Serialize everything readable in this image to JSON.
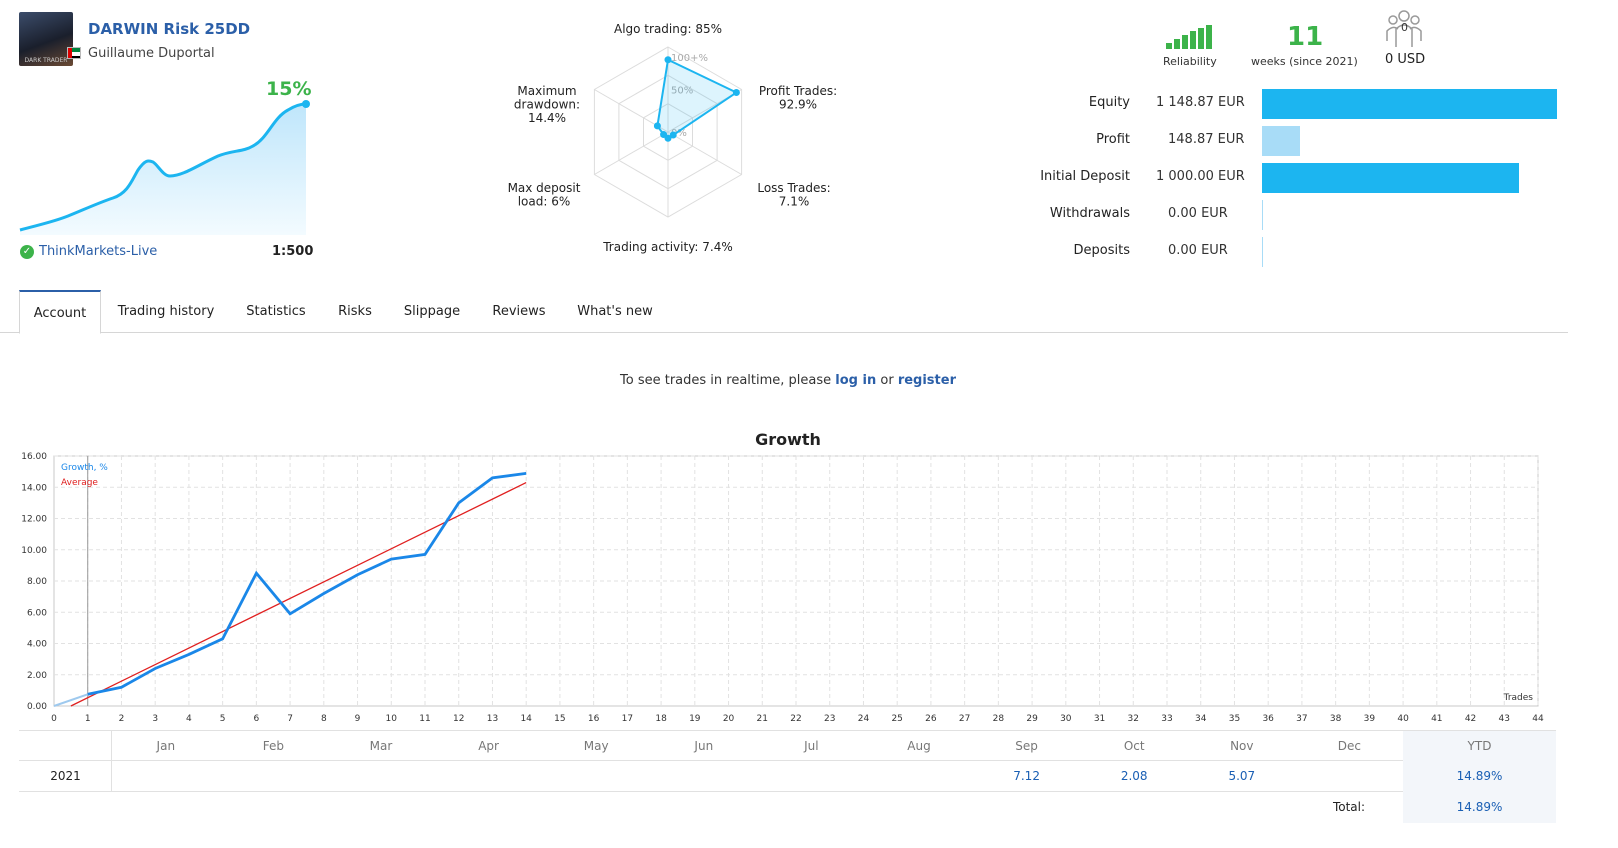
{
  "header": {
    "title": "DARWIN Risk 25DD",
    "author": "Guillaume Duportal",
    "avatar_text": "DARK TRADER",
    "growth_pct": "15%",
    "broker": "ThinkMarkets-Live",
    "leverage": "1:500"
  },
  "radar": {
    "axes": [
      {
        "label": "Algo trading: 85%",
        "value": 85
      },
      {
        "label_lines": [
          "Profit Trades:",
          "92.9%"
        ],
        "value": 92.9
      },
      {
        "label_lines": [
          "Loss Trades:",
          "7.1%"
        ],
        "value": 7.1
      },
      {
        "label": "Trading activity: 7.4%",
        "value": 7.4
      },
      {
        "label_lines": [
          "Max deposit",
          "load: 6%"
        ],
        "value": 6
      },
      {
        "label_lines": [
          "Maximum",
          "drawdown:",
          "14.4%"
        ],
        "value": 14.4
      }
    ],
    "ring_labels": [
      "100+%",
      "50%",
      "0%"
    ]
  },
  "stats": {
    "reliability_label": "Reliability",
    "weeks": "11",
    "weeks_label": "weeks (since 2021)",
    "investors_count": "0",
    "investors_usd": "0 USD"
  },
  "financials": [
    {
      "label": "Equity",
      "value": "1 148.87 EUR",
      "fraction": 1.0,
      "color": "#1cb5f0"
    },
    {
      "label": "Profit",
      "value": "148.87 EUR",
      "fraction": 0.1296,
      "color": "#a8dcf7"
    },
    {
      "label": "Initial Deposit",
      "value": "1 000.00 EUR",
      "fraction": 0.8704,
      "color": "#1cb5f0"
    },
    {
      "label": "Withdrawals",
      "value": "0.00 EUR",
      "fraction": 0,
      "color": "#a8dcf7"
    },
    {
      "label": "Deposits",
      "value": "0.00 EUR",
      "fraction": 0,
      "color": "#a8dcf7"
    }
  ],
  "tabs": [
    "Account",
    "Trading history",
    "Statistics",
    "Risks",
    "Slippage",
    "Reviews",
    "What's new"
  ],
  "realtime": {
    "prefix": "To see trades in realtime, please ",
    "login": "log in",
    "or": " or ",
    "register": "register"
  },
  "chart_data": {
    "type": "line",
    "title": "Growth",
    "xlabel": "Trades",
    "ylabel": "",
    "xlim": [
      0,
      44
    ],
    "ylim": [
      0,
      16
    ],
    "y_ticks": [
      "0.00",
      "2.00",
      "4.00",
      "6.00",
      "8.00",
      "10.00",
      "12.00",
      "14.00",
      "16.00"
    ],
    "legend": [
      "Growth, %",
      "Average"
    ],
    "series": [
      {
        "name": "Growth, %",
        "color": "#1a87e8",
        "x": [
          0,
          1,
          2,
          3,
          4,
          5,
          6,
          7,
          8,
          9,
          10,
          11,
          12,
          13,
          14
        ],
        "y": [
          0,
          0.75,
          1.2,
          2.4,
          3.3,
          4.3,
          8.5,
          5.9,
          7.2,
          8.4,
          9.4,
          9.7,
          13.0,
          14.6,
          14.89
        ]
      },
      {
        "name": "Average",
        "color": "#e02020",
        "x": [
          0.5,
          14
        ],
        "y": [
          0,
          14.3
        ]
      }
    ]
  },
  "monthly": {
    "months": [
      "Jan",
      "Feb",
      "Mar",
      "Apr",
      "May",
      "Jun",
      "Jul",
      "Aug",
      "Sep",
      "Oct",
      "Nov",
      "Dec"
    ],
    "ytd_label": "YTD",
    "year": "2021",
    "values": [
      "",
      "",
      "",
      "",
      "",
      "",
      "",
      "",
      "7.12",
      "2.08",
      "5.07",
      ""
    ],
    "ytd": "14.89%",
    "total_label": "Total:",
    "total": "14.89%"
  }
}
